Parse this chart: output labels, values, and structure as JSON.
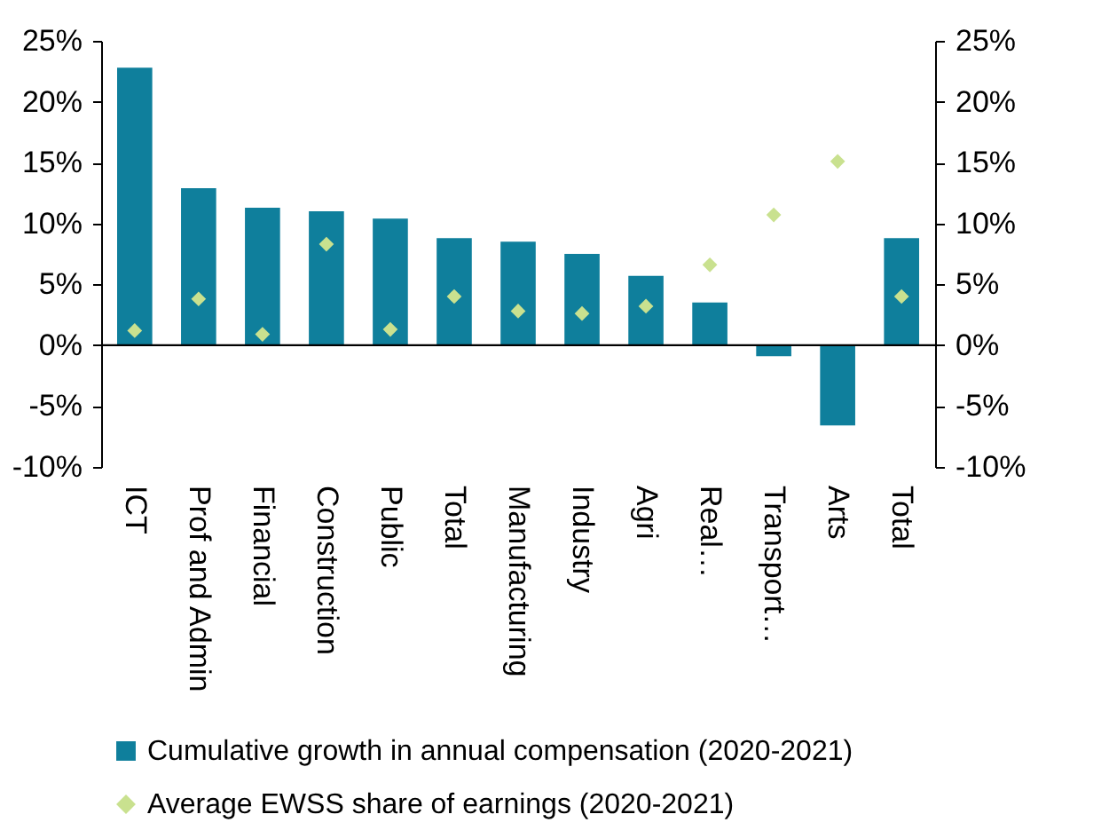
{
  "chart_data": {
    "type": "bar",
    "categories": [
      "ICT",
      "Prof and Admin",
      "Financial",
      "Construction",
      "Public",
      "Total",
      "Manufacturing",
      "Industry",
      "Agri",
      "Real…",
      "Transport…",
      "Arts",
      "Total"
    ],
    "series": [
      {
        "name": "Cumulative growth in annual compensation (2020-2021)",
        "color": "#0f7f9c",
        "values": [
          22.8,
          12.9,
          11.3,
          11.0,
          10.4,
          8.8,
          8.5,
          7.5,
          5.7,
          3.5,
          -0.9,
          -6.6,
          8.8
        ]
      },
      {
        "name": "Average EWSS share of earnings (2020-2021)",
        "type": "scatter",
        "axis": "y2",
        "marker": "diamond",
        "color": "#c9e18f",
        "values": [
          1.2,
          3.8,
          0.9,
          8.3,
          1.3,
          4.0,
          2.8,
          2.6,
          3.2,
          6.6,
          10.7,
          15.1,
          4.0
        ]
      }
    ],
    "ylim": [
      -10,
      25
    ],
    "yticks": [
      {
        "value": -10,
        "label": "-10%"
      },
      {
        "value": -5,
        "label": "-5%"
      },
      {
        "value": 0,
        "label": "0%"
      },
      {
        "value": 5,
        "label": "5%"
      },
      {
        "value": 10,
        "label": "10%"
      },
      {
        "value": 15,
        "label": "15%"
      },
      {
        "value": 20,
        "label": "20%"
      },
      {
        "value": 25,
        "label": "25%"
      }
    ],
    "y2lim": [
      -10,
      25
    ],
    "y2ticks": [
      {
        "value": -10,
        "label": "-10%"
      },
      {
        "value": -5,
        "label": "-5%"
      },
      {
        "value": 0,
        "label": "0%"
      },
      {
        "value": 5,
        "label": "5%"
      },
      {
        "value": 10,
        "label": "10%"
      },
      {
        "value": 15,
        "label": "15%"
      },
      {
        "value": 20,
        "label": "20%"
      },
      {
        "value": 25,
        "label": "25%"
      }
    ],
    "ref_lines": [
      {
        "axis": "y",
        "value": 0,
        "color": "#000000"
      }
    ],
    "grid": false,
    "legend": "bottom"
  }
}
